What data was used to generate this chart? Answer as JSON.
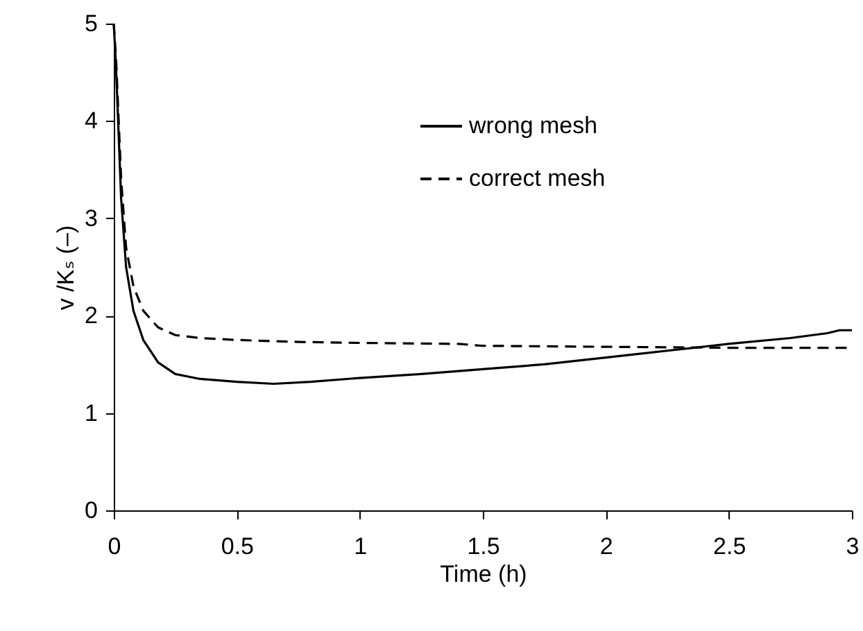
{
  "chart_data": {
    "type": "line",
    "xlabel": "Time (h)",
    "ylabel": "v /Kₛ (–)",
    "xlim": [
      0,
      3
    ],
    "xticks": [
      0,
      0.5,
      1,
      1.5,
      2,
      2.5,
      3
    ],
    "ylim": [
      0,
      5
    ],
    "yticks": [
      0,
      1,
      2,
      3,
      4,
      5
    ],
    "grid": false,
    "legend": "top right",
    "marker": "none",
    "series": [
      {
        "name": "wrong mesh",
        "color": "#000000",
        "line_style": "solid",
        "x": [
          0,
          0.01,
          0.03,
          0.05,
          0.08,
          0.12,
          0.18,
          0.25,
          0.35,
          0.5,
          0.65,
          0.8,
          1,
          1.25,
          1.5,
          1.75,
          2,
          2.25,
          2.5,
          2.75,
          2.9,
          2.95,
          3
        ],
        "values": [
          5,
          4.5,
          3.2,
          2.5,
          2.05,
          1.75,
          1.52,
          1.4,
          1.35,
          1.32,
          1.3,
          1.32,
          1.36,
          1.4,
          1.45,
          1.5,
          1.57,
          1.64,
          1.71,
          1.77,
          1.82,
          1.85,
          1.85
        ]
      },
      {
        "name": "correct mesh",
        "color": "#000000",
        "line_style": "dashed",
        "x": [
          0,
          0.01,
          0.03,
          0.05,
          0.08,
          0.12,
          0.18,
          0.25,
          0.35,
          0.5,
          0.75,
          1,
          1.4,
          1.5,
          2,
          2.5,
          3
        ],
        "values": [
          5,
          4.6,
          3.4,
          2.7,
          2.3,
          2.05,
          1.88,
          1.8,
          1.77,
          1.75,
          1.73,
          1.72,
          1.71,
          1.69,
          1.68,
          1.67,
          1.67
        ]
      }
    ]
  }
}
